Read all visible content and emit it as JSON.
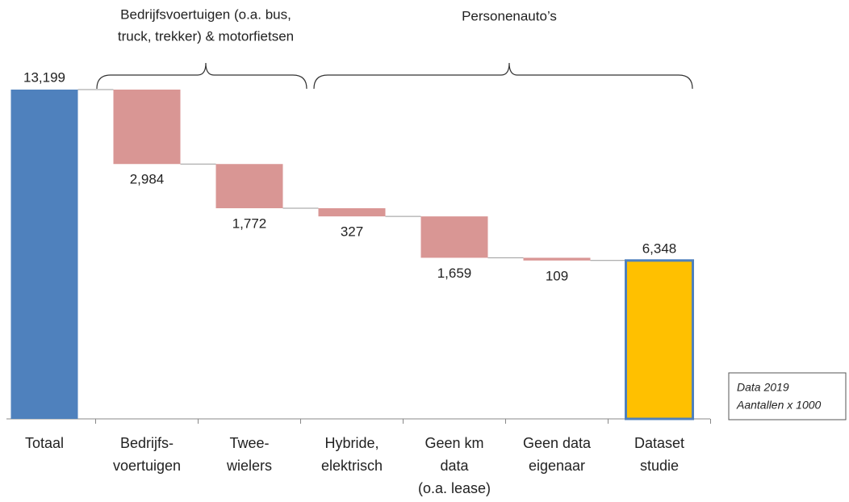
{
  "chart_data": {
    "type": "waterfall",
    "categories": [
      [
        "Totaal"
      ],
      [
        "Bedrijfs-",
        "voertuigen"
      ],
      [
        "Twee-",
        "wielers"
      ],
      [
        "Hybride,",
        "elektrisch"
      ],
      [
        "Geen km",
        "data",
        "(o.a. lease)"
      ],
      [
        "Geen data",
        "eigenaar"
      ],
      [
        "Dataset",
        "studie"
      ]
    ],
    "values": [
      13199,
      2984,
      1772,
      327,
      1659,
      109,
      6348
    ],
    "value_labels": [
      "13,199",
      "2,984",
      "1,772",
      "327",
      "1,659",
      "109",
      "6,348"
    ],
    "measure": [
      "total",
      "decrease",
      "decrease",
      "decrease",
      "decrease",
      "decrease",
      "total"
    ],
    "colors": [
      "#4f81bd",
      "#d99694",
      "#d99694",
      "#d99694",
      "#d99694",
      "#d99694",
      "#ffc000"
    ],
    "annotations": [
      [
        "Bedrijfsvoertuigen (o.a. bus,",
        "truck, trekker) & motorfietsen"
      ],
      [
        "Personenauto’s"
      ]
    ],
    "note": [
      "Data 2019",
      "Aantallen x 1000"
    ]
  }
}
